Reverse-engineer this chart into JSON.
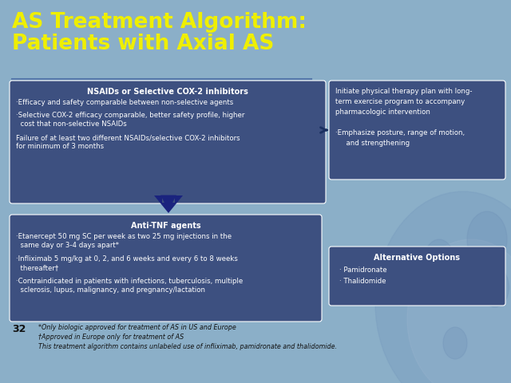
{
  "title_line1": "AS Treatment Algorithm:",
  "title_line2": "Patients with Axial AS",
  "title_color": "#EFEF00",
  "bg_color": "#8BAFC8",
  "box_color_dark": "#3D5080",
  "box_color_mid": "#4A5F95",
  "slide_number": "32",
  "nsaid_title": "NSAIDs or Selective COX-2 inhibitors",
  "nsaid_bullet1": "·Efficacy and safety comparable between non-selective agents",
  "nsaid_bullet2": "·Selective COX-2 efficacy comparable, better safety profile, higher\n  cost that non-selective NSAIDs",
  "nsaid_bullet3": "Failure of at least two different NSAIDs/selective COX-2 inhibitors\nfor minimum of 3 months",
  "physio_text1": "Initiate physical therapy plan with long-",
  "physio_text2": "term exercise program to accompany",
  "physio_text3": "pharmacologic intervention",
  "physio_bullet": "·Emphasize posture, range of motion,",
  "physio_bullet2": "  and strengthening",
  "antitf_title": "Anti-TNF agents",
  "antitf_bullet1": "·Etanercept 50 mg SC per week as two 25 mg injections in the\n  same day or 3-4 days apart*",
  "antitf_bullet2": "·Infliximab 5 mg/kg at 0, 2, and 6 weeks and every 6 to 8 weeks\n  thereafter†",
  "antitf_bullet3": "·Contraindicated in patients with infections, tuberculosis, multiple\n  sclerosis, lupus, malignancy, and pregnancy/lactation",
  "alt_title": "Alternative Options",
  "alt_bullet1": "· Pamidronate",
  "alt_bullet2": "· Thalidomide",
  "footnote1": "*Only biologic approved for treatment of AS in US and Europe",
  "footnote2": "†Approved in Europe only for treatment of AS",
  "footnote3": "This treatment algorithm contains unlabeled use of infliximab, pamidronate and thalidomide.",
  "arrow_color": "#1A237E",
  "line_color": "#5577AA",
  "horiz_arrow_color": "#1A3060"
}
